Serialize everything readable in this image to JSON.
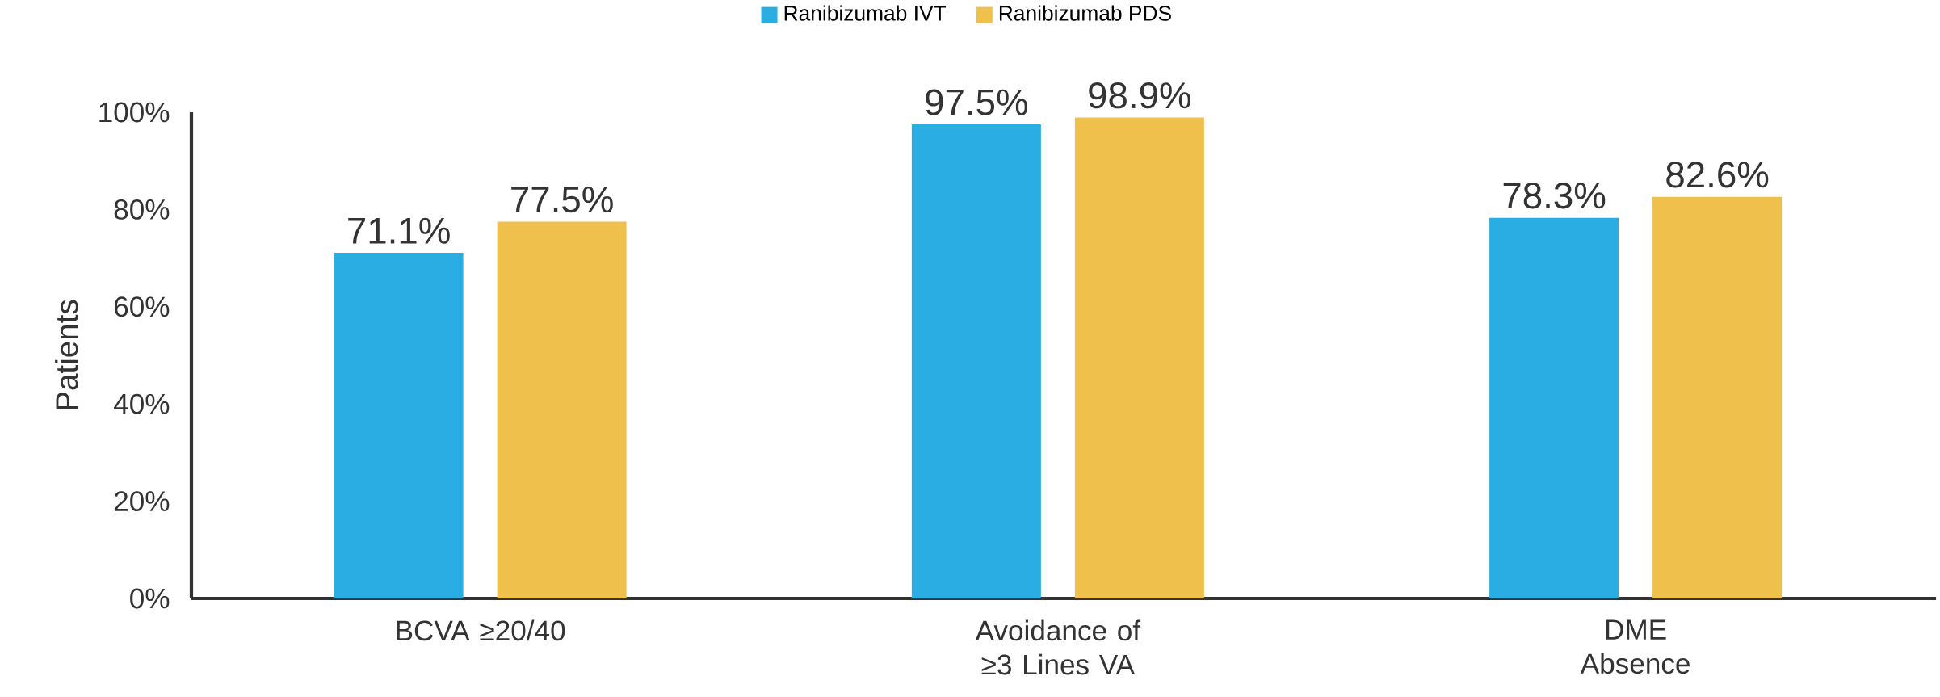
{
  "chart_data": {
    "type": "bar",
    "ylabel": "Patients",
    "categories": [
      "BCVA ≥20/40",
      "Avoidance of ≥3 Lines VA",
      "DME Absence"
    ],
    "series": [
      {
        "name": "Ranibizumab IVT",
        "color": "#29ade3",
        "values": [
          71.1,
          97.5,
          78.3
        ],
        "value_labels": [
          "71.1%",
          "97.5%",
          "78.3%"
        ]
      },
      {
        "name": "Ranibizumab PDS",
        "color": "#f0c04c",
        "values": [
          77.5,
          98.9,
          82.6
        ],
        "value_labels": [
          "77.5%",
          "98.9%",
          "82.6%"
        ]
      }
    ],
    "ylim": [
      0,
      100
    ],
    "yticks": [
      {
        "value": 0,
        "label": "0%"
      },
      {
        "value": 20,
        "label": "20%"
      },
      {
        "value": 40,
        "label": "40%"
      },
      {
        "value": 60,
        "label": "60%"
      },
      {
        "value": 80,
        "label": "80%"
      },
      {
        "value": 100,
        "label": "100%"
      }
    ],
    "grid": false,
    "legend": "top"
  }
}
